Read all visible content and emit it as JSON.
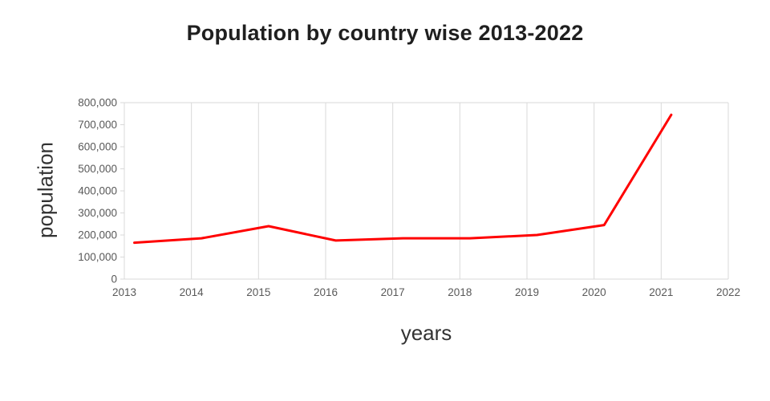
{
  "page": {
    "background": "#ffffff"
  },
  "chart_data": {
    "type": "line",
    "title": "Population by country wise 2013-2022",
    "xlabel": "years",
    "ylabel": "population",
    "series": [
      {
        "name": "population",
        "x": [
          2013,
          2014,
          2015,
          2016,
          2017,
          2018,
          2019,
          2020,
          2021
        ],
        "values": [
          165000,
          185000,
          240000,
          175000,
          185000,
          185000,
          200000,
          245000,
          745000
        ]
      }
    ],
    "x_tick_labels": [
      "2013",
      "2014",
      "2015",
      "2016",
      "2017",
      "2018",
      "2019",
      "2020",
      "2021",
      "2022"
    ],
    "y_tick_labels": [
      "0",
      "100,000",
      "200,000",
      "300,000",
      "400,000",
      "500,000",
      "600,000",
      "700,000",
      "800,000"
    ],
    "xlim": [
      2013,
      2022
    ],
    "ylim": [
      0,
      800000
    ],
    "y_tick_step": 100000,
    "x_point_offset_years": 0.15,
    "grid": "vertical-gridlines-with-top-and-bottom-border",
    "legend": "none",
    "line_color": "#ff0000",
    "grid_color": "#d9d9d9",
    "tick_label_color": "#595959",
    "title_color": "#1f1f1f",
    "axis_title_color": "#333333"
  }
}
